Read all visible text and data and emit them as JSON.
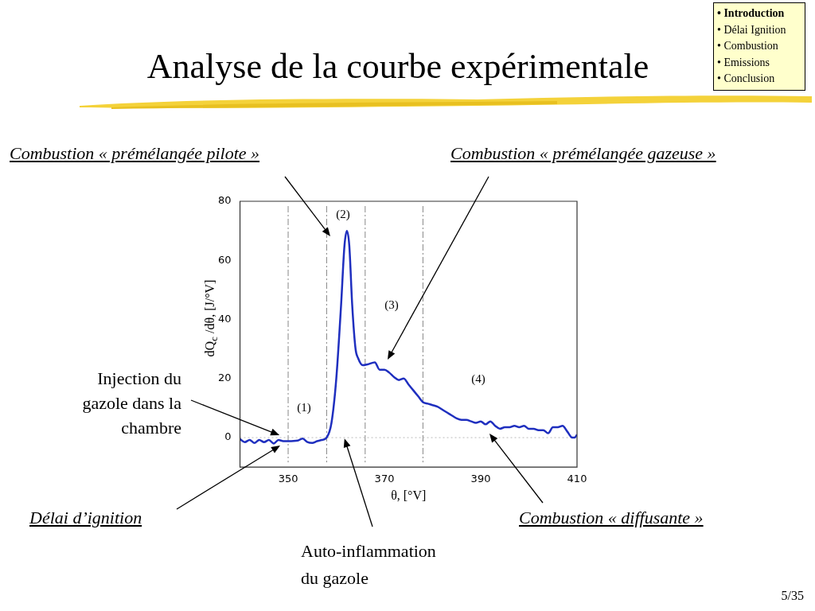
{
  "chart_data": {
    "type": "line",
    "title": "Analyse de la courbe expérimentale",
    "xlabel": "θ, [°V]",
    "ylabel": "dQ$_{c}$ /dθ, [J/°V]",
    "x": [
      340,
      341,
      342,
      343,
      344,
      345,
      346,
      347,
      348,
      349,
      350,
      352,
      353,
      354,
      355,
      356,
      357,
      358,
      359,
      360,
      361,
      361.7,
      362.2,
      362.7,
      363.3,
      364,
      364.5,
      365.5,
      366.5,
      368,
      369,
      370,
      371,
      372,
      373,
      374,
      375,
      376,
      377,
      378,
      379,
      380,
      381,
      382,
      383,
      384,
      385,
      386,
      387,
      388,
      389,
      390,
      391,
      392,
      393,
      394,
      395,
      396,
      397,
      398,
      399,
      400,
      401,
      402,
      403,
      404,
      405,
      406,
      407,
      408,
      409,
      409.5,
      410
    ],
    "series": [
      {
        "color": "#1f2fbf",
        "values": [
          -0.5,
          -1.5,
          -0.8,
          -1.8,
          -0.8,
          -1.5,
          -0.8,
          -2,
          -0.8,
          -1.2,
          -1.2,
          -1,
          -0.3,
          -1.5,
          -1.8,
          -1.2,
          -0.8,
          0,
          5,
          20,
          45,
          65,
          70,
          65,
          45,
          30,
          27,
          24.5,
          24.8,
          25.5,
          23,
          23,
          22,
          20.5,
          19.5,
          20,
          18,
          16,
          14,
          12,
          11.5,
          11,
          10.5,
          9.5,
          8.5,
          7.5,
          6.5,
          6,
          6,
          5.5,
          5,
          5.5,
          4.5,
          5.5,
          4,
          3,
          3.5,
          3.5,
          4,
          3.5,
          4,
          3,
          3,
          2.5,
          2.5,
          1.5,
          3.5,
          3.5,
          4,
          2,
          0,
          0,
          1
        ]
      }
    ],
    "xlim": [
      340,
      410
    ],
    "xticks": [
      350,
      370,
      390,
      410
    ],
    "ylim": [
      -10,
      80
    ],
    "yticks": [
      0,
      20,
      40,
      60,
      80
    ],
    "grid": false,
    "legend": false,
    "marker": "none",
    "line_style": "solid",
    "ref_lines": [
      {
        "axis": "x",
        "value": 350,
        "color": "#888888",
        "line_style": "dashed"
      },
      {
        "axis": "x",
        "value": 358,
        "color": "#888888",
        "line_style": "dashed"
      },
      {
        "axis": "x",
        "value": 366,
        "color": "#888888",
        "line_style": "dashed"
      },
      {
        "axis": "x",
        "value": 378,
        "color": "#888888",
        "line_style": "dashed"
      },
      {
        "axis": "y",
        "value": 0,
        "color": "#bbbbbb",
        "line_style": "dotted"
      }
    ],
    "annotations": [
      "(1)",
      "(2)",
      "(3)",
      "(4)",
      "Combustion « prémélangée pilote »",
      "Combustion « prémélangée gazeuse »",
      {
        "text": "Injection du\ngazole dans la\nchambre",
        "x": 348.2,
        "y": 0.8
      },
      "Délai d’ignition",
      "Combustion « diffusante »",
      {
        "text": "Auto-inflammation\ndu gazole",
        "x": 361.7,
        "y": -0.3
      },
      "5/35",
      "• Introduction",
      "• Délai Ignition",
      "• Combustion",
      "• Emissions",
      "• Conclusion"
    ]
  }
}
